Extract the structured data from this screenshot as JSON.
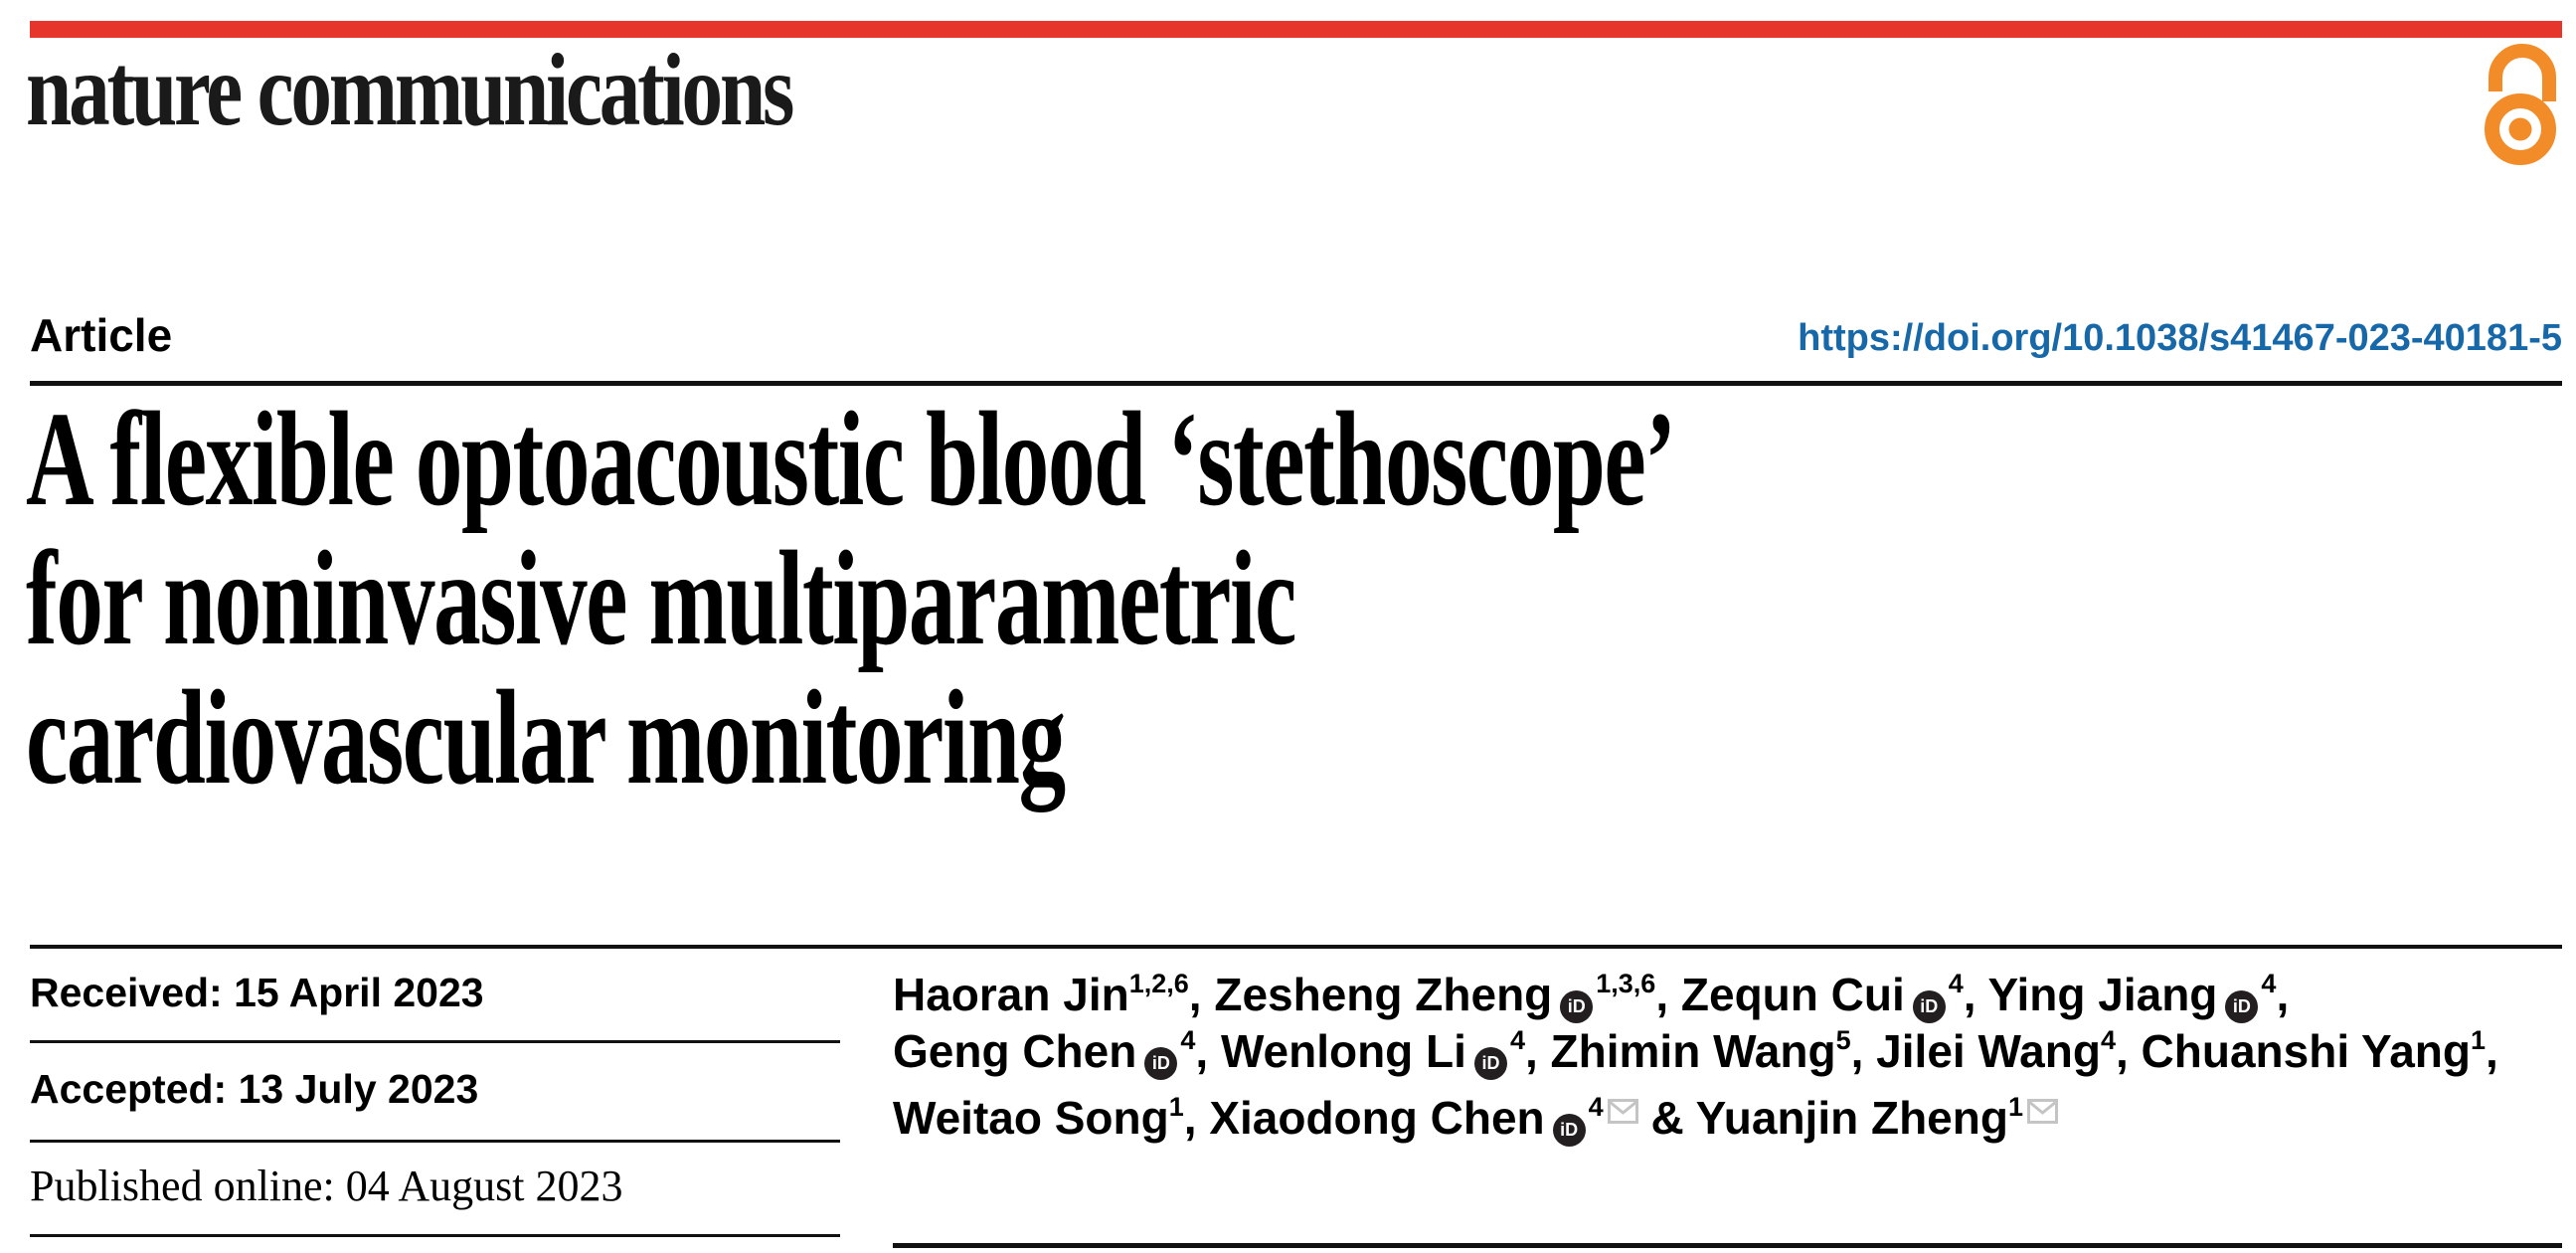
{
  "header": {
    "journal": "nature communications",
    "red_bar_color": "#e6362b",
    "open_access_icon_color": "#f28c28",
    "article_type": "Article",
    "doi": "https://doi.org/10.1038/s41467-023-40181-5",
    "doi_color": "#1668a8"
  },
  "title": {
    "line1": "A flexible optoacoustic blood ‘stethoscope’",
    "line2": "for noninvasive multiparametric",
    "line3": "cardiovascular monitoring"
  },
  "dates": {
    "received": "Received: 15 April 2023",
    "accepted": "Accepted: 13 July 2023",
    "published": "Published online: 04 August 2023"
  },
  "authors": {
    "orcid_label": "iD",
    "lines": [
      [
        {
          "name": "Haoran Jin",
          "sup": "1,2,6",
          "orcid": false,
          "envelope": false,
          "trail": ", "
        },
        {
          "name": "Zesheng Zheng",
          "sup": "1,3,6",
          "orcid": true,
          "envelope": false,
          "trail": ", "
        },
        {
          "name": "Zequn Cui",
          "sup": "4",
          "orcid": true,
          "envelope": false,
          "trail": ", "
        },
        {
          "name": "Ying Jiang",
          "sup": "4",
          "orcid": true,
          "envelope": false,
          "trail": ","
        }
      ],
      [
        {
          "name": "Geng Chen",
          "sup": "4",
          "orcid": true,
          "envelope": false,
          "trail": ", "
        },
        {
          "name": "Wenlong Li",
          "sup": "4",
          "orcid": true,
          "envelope": false,
          "trail": ", "
        },
        {
          "name": "Zhimin Wang",
          "sup": "5",
          "orcid": false,
          "envelope": false,
          "trail": ", "
        },
        {
          "name": "Jilei Wang",
          "sup": "4",
          "orcid": false,
          "envelope": false,
          "trail": ", "
        },
        {
          "name": "Chuanshi Yang",
          "sup": "1",
          "orcid": false,
          "envelope": false,
          "trail": ","
        }
      ],
      [
        {
          "name": "Weitao Song",
          "sup": "1",
          "orcid": false,
          "envelope": false,
          "trail": ", "
        },
        {
          "name": "Xiaodong Chen",
          "sup": "4",
          "orcid": true,
          "envelope": true,
          "trail": " & "
        },
        {
          "name": "Yuanjin Zheng",
          "sup": "1",
          "orcid": false,
          "envelope": true,
          "trail": ""
        }
      ]
    ]
  }
}
